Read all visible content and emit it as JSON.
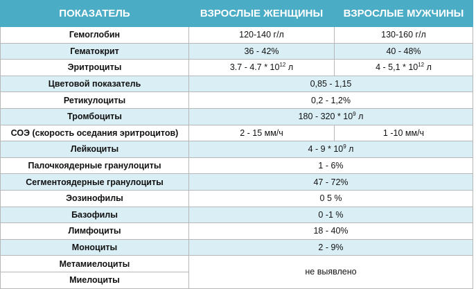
{
  "table": {
    "headers": [
      "ПОКАЗАТЕЛЬ",
      "ВЗРОСЛЫЕ ЖЕНЩИНЫ",
      "ВЗРОСЛЫЕ МУЖЧИНЫ"
    ],
    "rows": [
      {
        "name": "Гемоглобин",
        "women": "120-140 г/л",
        "men": "130-160 г/л"
      },
      {
        "name": "Гематокрит",
        "women": "36 - 42%",
        "men": "40 - 48%"
      },
      {
        "name": "Эритроциты",
        "women_base": "3.7 - 4.7 * 10",
        "women_exp": "12",
        "women_unit": " л",
        "men_base": "4 - 5,1 * 10",
        "men_exp": "12",
        "men_unit": " л"
      },
      {
        "name": "Цветовой показатель",
        "both": "0,85 - 1,15"
      },
      {
        "name": "Ретикулоциты",
        "both": "0,2 - 1,2%"
      },
      {
        "name": "Тромбоциты",
        "both_base": "180 - 320 * 10",
        "both_exp": "9",
        "both_unit": " л"
      },
      {
        "name": "СОЭ (скорость оседания эритроцитов)",
        "women": "2 - 15 мм/ч",
        "men": "1 -10 мм/ч"
      },
      {
        "name": "Лейкоциты",
        "both_base": "4 - 9 * 10",
        "both_exp": "9",
        "both_unit": " л"
      },
      {
        "name": "Палочкоядерные гранулоциты",
        "both": "1 - 6%"
      },
      {
        "name": "Сегментоядерные гранулоциты",
        "both": "47 - 72%"
      },
      {
        "name": "Эозинофилы",
        "both": "0 5 %"
      },
      {
        "name": "Базофилы",
        "both": "0 -1 %"
      },
      {
        "name": "Лимфоциты",
        "both": "18 - 40%"
      },
      {
        "name": "Моноциты",
        "both": "2 - 9%"
      },
      {
        "name": "Метамиелоциты"
      },
      {
        "name": "Миелоциты"
      }
    ],
    "merged_last": "не выявлено"
  }
}
